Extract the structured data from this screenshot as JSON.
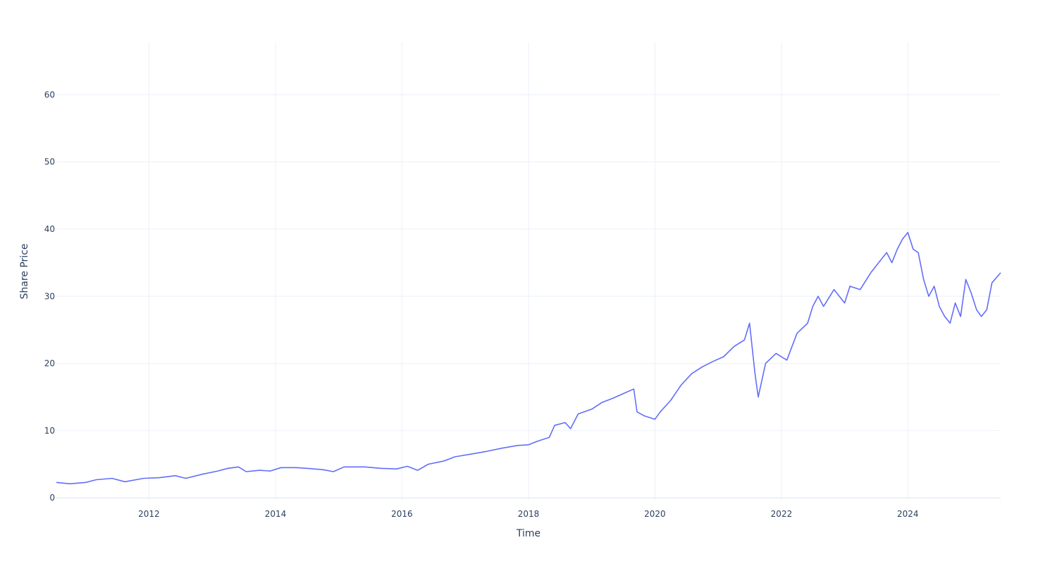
{
  "chart_data": {
    "type": "line",
    "title": "",
    "xlabel": "Time",
    "ylabel": "Share Price",
    "xlim": [
      "2010-07-15",
      "2025-06-20"
    ],
    "ylim": [
      -0.4,
      67.8
    ],
    "grid": true,
    "legend": "none",
    "line_color": "#636efa",
    "x_ticks": [
      "2012-01-01",
      "2014-01-01",
      "2016-01-01",
      "2018-01-01",
      "2020-01-01",
      "2022-01-01",
      "2024-01-01"
    ],
    "x_tick_labels": [
      "2012",
      "2014",
      "2016",
      "2018",
      "2020",
      "2022",
      "2024"
    ],
    "y_ticks": [
      0,
      10,
      20,
      30,
      40,
      50,
      60
    ],
    "y_tick_labels": [
      "0",
      "10",
      "20",
      "30",
      "40",
      "50",
      "60"
    ],
    "series": [
      {
        "values": [
          [
            "2010-07-15",
            2.3
          ],
          [
            "2010-10-01",
            2.1
          ],
          [
            "2011-01-01",
            2.3
          ],
          [
            "2011-03-01",
            2.7
          ],
          [
            "2011-06-01",
            2.9
          ],
          [
            "2011-08-15",
            2.4
          ],
          [
            "2011-12-01",
            2.9
          ],
          [
            "2012-03-01",
            3.0
          ],
          [
            "2012-06-01",
            3.3
          ],
          [
            "2012-08-01",
            2.9
          ],
          [
            "2012-11-01",
            3.5
          ],
          [
            "2013-02-01",
            4.0
          ],
          [
            "2013-04-01",
            4.4
          ],
          [
            "2013-06-01",
            4.6
          ],
          [
            "2013-07-15",
            3.9
          ],
          [
            "2013-10-01",
            4.1
          ],
          [
            "2013-12-01",
            4.0
          ],
          [
            "2014-02-01",
            4.5
          ],
          [
            "2014-05-01",
            4.5
          ],
          [
            "2014-07-01",
            4.4
          ],
          [
            "2014-10-01",
            4.2
          ],
          [
            "2014-12-01",
            3.9
          ],
          [
            "2015-02-01",
            4.6
          ],
          [
            "2015-06-01",
            4.6
          ],
          [
            "2015-09-01",
            4.4
          ],
          [
            "2015-12-01",
            4.3
          ],
          [
            "2016-02-01",
            4.7
          ],
          [
            "2016-04-01",
            4.1
          ],
          [
            "2016-06-01",
            5.0
          ],
          [
            "2016-09-01",
            5.5
          ],
          [
            "2016-11-01",
            6.1
          ],
          [
            "2017-02-01",
            6.5
          ],
          [
            "2017-05-01",
            6.9
          ],
          [
            "2017-08-01",
            7.4
          ],
          [
            "2017-11-01",
            7.8
          ],
          [
            "2018-01-01",
            7.9
          ],
          [
            "2018-03-01",
            8.5
          ],
          [
            "2018-05-01",
            9.0
          ],
          [
            "2018-06-01",
            10.8
          ],
          [
            "2018-08-01",
            11.2
          ],
          [
            "2018-09-01",
            10.3
          ],
          [
            "2018-10-15",
            12.5
          ],
          [
            "2019-01-01",
            13.2
          ],
          [
            "2019-03-01",
            14.2
          ],
          [
            "2019-05-01",
            14.8
          ],
          [
            "2019-07-01",
            15.5
          ],
          [
            "2019-09-01",
            16.2
          ],
          [
            "2019-09-20",
            12.8
          ],
          [
            "2019-11-01",
            12.2
          ],
          [
            "2020-01-01",
            11.7
          ],
          [
            "2020-02-01",
            12.8
          ],
          [
            "2020-04-01",
            14.5
          ],
          [
            "2020-06-01",
            16.8
          ],
          [
            "2020-08-01",
            18.5
          ],
          [
            "2020-10-01",
            19.5
          ],
          [
            "2020-12-01",
            20.3
          ],
          [
            "2021-02-01",
            21.0
          ],
          [
            "2021-04-01",
            22.5
          ],
          [
            "2021-06-01",
            23.5
          ],
          [
            "2021-07-01",
            26.0
          ],
          [
            "2021-08-01",
            18.5
          ],
          [
            "2021-08-20",
            15.0
          ],
          [
            "2021-10-01",
            20.0
          ],
          [
            "2021-12-01",
            21.5
          ],
          [
            "2022-02-01",
            20.5
          ],
          [
            "2022-04-01",
            24.5
          ],
          [
            "2022-06-01",
            26.0
          ],
          [
            "2022-07-01",
            28.5
          ],
          [
            "2022-08-01",
            30.0
          ],
          [
            "2022-09-01",
            28.5
          ],
          [
            "2022-11-01",
            31.0
          ],
          [
            "2023-01-01",
            29.0
          ],
          [
            "2023-02-01",
            31.5
          ],
          [
            "2023-04-01",
            31.0
          ],
          [
            "2023-06-01",
            33.5
          ],
          [
            "2023-08-01",
            35.5
          ],
          [
            "2023-09-01",
            36.5
          ],
          [
            "2023-10-01",
            35.0
          ],
          [
            "2023-11-01",
            37.0
          ],
          [
            "2023-12-01",
            38.5
          ],
          [
            "2024-01-01",
            39.5
          ],
          [
            "2024-02-01",
            37.0
          ],
          [
            "2024-03-01",
            36.5
          ],
          [
            "2024-04-01",
            32.5
          ],
          [
            "2024-05-01",
            30.0
          ],
          [
            "2024-06-01",
            31.5
          ],
          [
            "2024-07-01",
            28.5
          ],
          [
            "2024-08-01",
            27.0
          ],
          [
            "2024-09-01",
            26.0
          ],
          [
            "2024-10-01",
            29.0
          ],
          [
            "2024-11-01",
            27.0
          ],
          [
            "2024-12-01",
            32.5
          ],
          [
            "2025-01-01",
            30.5
          ],
          [
            "2025-02-01",
            28.0
          ],
          [
            "2025-03-01",
            27.0
          ],
          [
            "2025-04-01",
            28.0
          ],
          [
            "2025-05-01",
            32.0
          ],
          [
            "2025-06-20",
            33.5
          ]
        ]
      }
    ]
  }
}
